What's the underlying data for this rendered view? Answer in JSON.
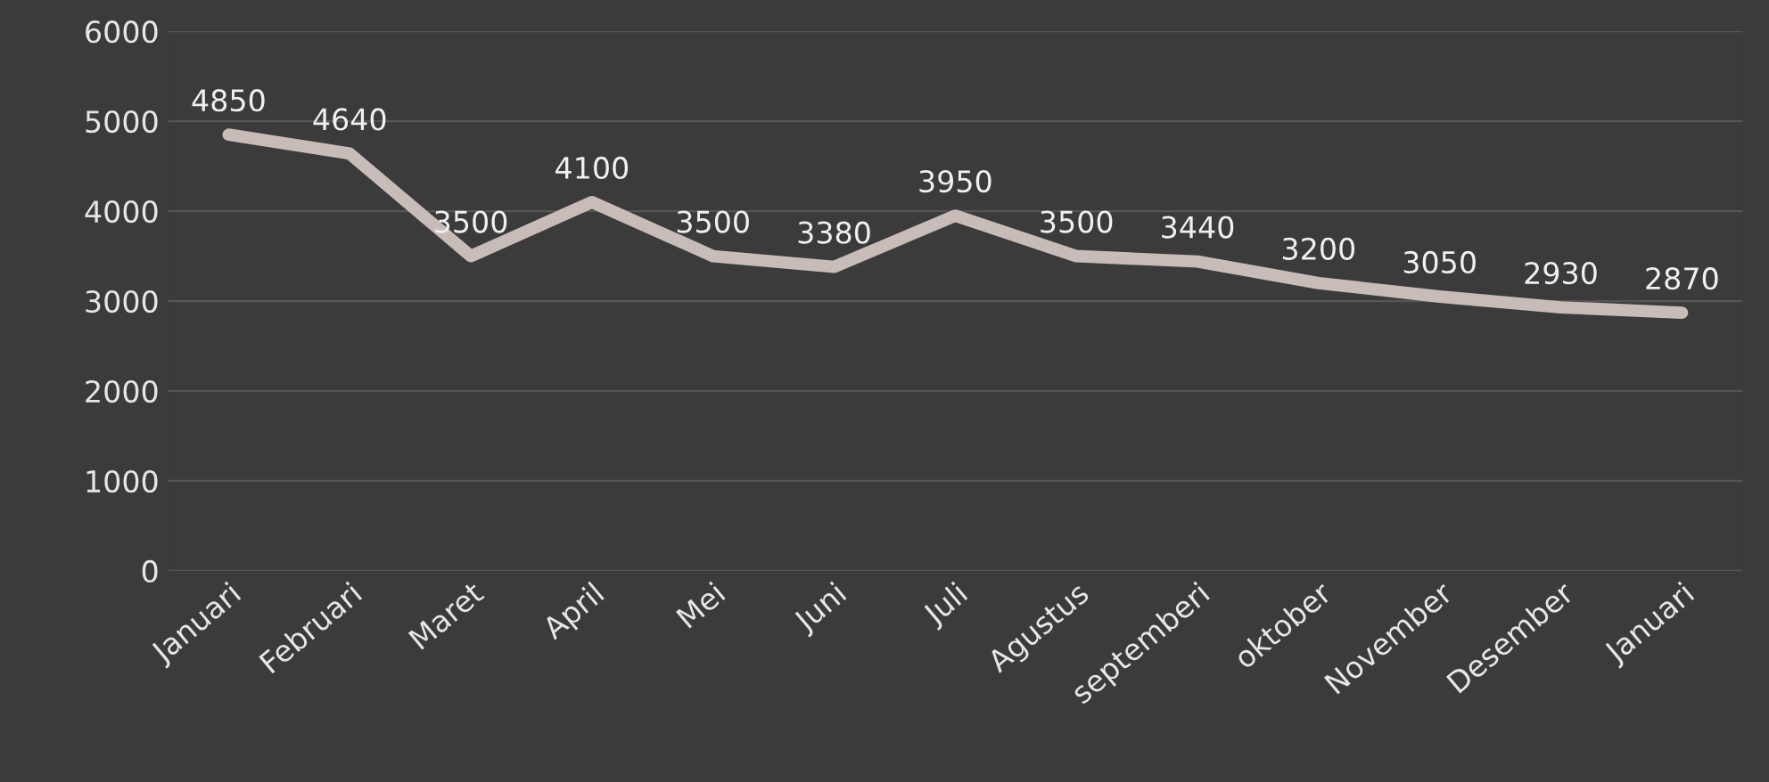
{
  "chart_data": {
    "type": "line",
    "categories": [
      "Januari",
      "Februari",
      "Maret",
      "April",
      "Mei",
      "Juni",
      "Juli",
      "Agustus",
      "septemberi",
      "oktober",
      "November",
      "Desember",
      "Januari"
    ],
    "series": [
      {
        "color": "#c8bcb8",
        "values": [
          4850,
          4640,
          3500,
          4100,
          3500,
          3380,
          3950,
          3500,
          3440,
          3200,
          3050,
          2930,
          2870
        ]
      }
    ],
    "ylim": [
      0,
      6000
    ],
    "yticks": [
      0,
      1000,
      2000,
      3000,
      4000,
      5000,
      6000
    ],
    "grid": "y",
    "data_labels": true,
    "marker": "none",
    "line_style": "solid",
    "legend": false
  }
}
